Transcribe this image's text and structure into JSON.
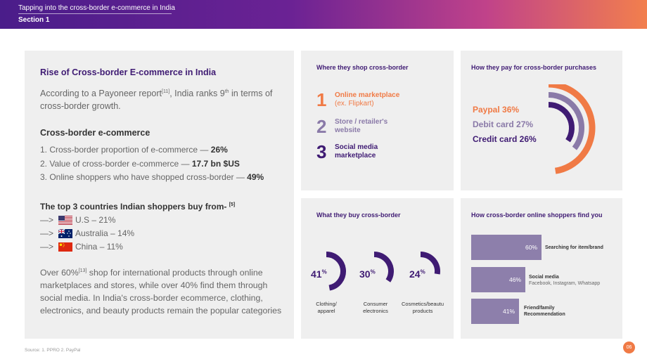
{
  "header": {
    "title": "Tapping into the cross-border e-commerce in India",
    "section": "Section 1"
  },
  "left": {
    "heading": "Rise of Cross-border E-commerce in India",
    "intro_a": "According to a Payoneer report",
    "intro_ref": "[11]",
    "intro_b": ", India ranks 9",
    "intro_sup": "th",
    "intro_c": " in terms of cross-border growth.",
    "sub1": "Cross-border e-commerce",
    "stats": [
      {
        "label": "1. Cross-border proportion of e-commerce — ",
        "value": "26%"
      },
      {
        "label": "2. Value of cross-border e-commerce — ",
        "value": "17.7 bn $US"
      },
      {
        "label": "3. Online shoppers who have shopped cross-border — ",
        "value": "49%"
      }
    ],
    "sub2": "The top 3 countries Indian shoppers buy from-",
    "sub2_ref": "[5]",
    "arrow": "—>",
    "countries": [
      {
        "name": "U.S – 21%",
        "flag": "us-flag"
      },
      {
        "name": "Australia – 14%",
        "flag": "australia-flag"
      },
      {
        "name": "China – 11%",
        "flag": "china-flag"
      }
    ],
    "bottom_a": "Over 60%",
    "bottom_ref": "[13]",
    "bottom_b": " shop for international products through online marketplaces and stores, while over 40% find them through social media. In India's cross-border ecommerce, clothing, electronics, and beauty products remain the popular categories"
  },
  "where": {
    "title": "Where they shop cross-border",
    "items": [
      {
        "num": "1",
        "label": "Online marketplace",
        "sub": "(ex. Flipkart)"
      },
      {
        "num": "2",
        "label": "Store / retailer's",
        "sub": "website"
      },
      {
        "num": "3",
        "label": "Social media",
        "sub": "marketplace"
      }
    ]
  },
  "pay": {
    "title": "How they pay for cross-border purchases",
    "items": [
      {
        "label": "Paypal 36%",
        "value": 36,
        "color": "#f07a45"
      },
      {
        "label": "Debit card 27%",
        "value": 27,
        "color": "#8a7aa8"
      },
      {
        "label": "Credit card 26%",
        "value": 26,
        "color": "#3f1b73"
      }
    ]
  },
  "buy": {
    "title": "What they buy cross-border",
    "items": [
      {
        "pct": "41",
        "unit": "%",
        "value": 41,
        "cap1": "Clothing/",
        "cap2": "apparel"
      },
      {
        "pct": "30",
        "unit": "%",
        "value": 30,
        "cap1": "Consumer",
        "cap2": "electronics"
      },
      {
        "pct": "24",
        "unit": "%",
        "value": 24,
        "cap1": "Cosmetics/beautu",
        "cap2": "products"
      }
    ]
  },
  "find": {
    "title": "How cross-border online shoppers find you",
    "items": [
      {
        "pct": "60%",
        "value": 60,
        "label": "Searching for item/brand",
        "sub": ""
      },
      {
        "pct": "46%",
        "value": 46,
        "label": "Social media",
        "sub": "Facebook, Instagram, Whatsapp"
      },
      {
        "pct": "41%",
        "value": 41,
        "label": "Friend/family",
        "sub": "Recommendation"
      }
    ]
  },
  "footer": {
    "source": "Source: 1. PPRO    2. PayPal",
    "page": "06"
  }
}
